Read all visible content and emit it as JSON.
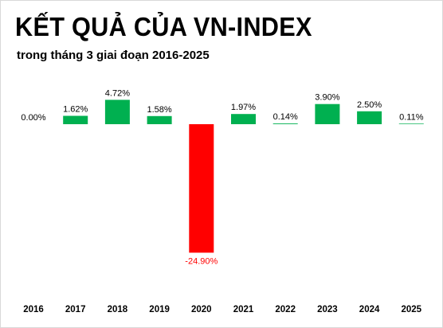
{
  "title": "KẾT QUẢ CỦA VN-INDEX",
  "subtitle": "trong tháng 3 giai đoạn 2016-2025",
  "colors": {
    "positive": "#00b050",
    "negative": "#ff0000",
    "label_positive": "#000000",
    "label_negative": "#ff0000"
  },
  "chart_data": {
    "type": "bar",
    "title": "KẾT QUẢ CỦA VN-INDEX",
    "subtitle": "trong tháng 3 giai đoạn 2016-2025",
    "xlabel": "",
    "ylabel": "",
    "unit": "%",
    "categories": [
      "2016",
      "2017",
      "2018",
      "2019",
      "2020",
      "2021",
      "2022",
      "2023",
      "2024",
      "2025"
    ],
    "values": [
      0.0,
      1.62,
      4.72,
      1.58,
      -24.9,
      1.97,
      0.14,
      3.9,
      2.5,
      0.11
    ],
    "data_labels": [
      "0.00%",
      "1.62%",
      "4.72%",
      "1.58%",
      "-24.90%",
      "1.97%",
      "0.14%",
      "3.90%",
      "2.50%",
      "0.11%"
    ],
    "ylim": [
      -25,
      5
    ],
    "grid": false,
    "legend": "none"
  }
}
